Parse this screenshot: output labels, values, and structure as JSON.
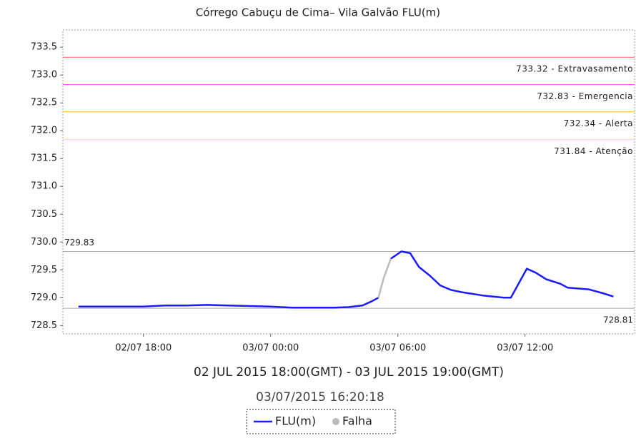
{
  "chart_data": {
    "type": "line",
    "title": "Córrego Cabuçu de Cima– Vila Galvão FLU(m)",
    "x_label": "02 JUL 2015 18:00(GMT) - 03 JUL 2015 19:00(GMT)",
    "subtitle": "03/07/2015 16:20:18",
    "x": [
      "2015-07-02T14:56",
      "2015-07-02T16:00",
      "2015-07-02T18:00",
      "2015-07-02T19:00",
      "2015-07-02T20:00",
      "2015-07-02T21:00",
      "2015-07-02T22:00",
      "2015-07-02T23:00",
      "2015-07-03T00:00",
      "2015-07-03T01:00",
      "2015-07-03T02:00",
      "2015-07-03T03:00",
      "2015-07-03T03:40",
      "2015-07-03T04:20",
      "2015-07-03T04:45",
      "2015-07-03T05:05",
      "2015-07-03T05:20",
      "2015-07-03T05:40",
      "2015-07-03T06:10",
      "2015-07-03T06:35",
      "2015-07-03T07:00",
      "2015-07-03T07:30",
      "2015-07-03T08:00",
      "2015-07-03T08:30",
      "2015-07-03T09:00",
      "2015-07-03T10:00",
      "2015-07-03T11:00",
      "2015-07-03T11:20",
      "2015-07-03T12:05",
      "2015-07-03T12:30",
      "2015-07-03T13:00",
      "2015-07-03T13:40",
      "2015-07-03T14:00",
      "2015-07-03T15:00",
      "2015-07-03T15:40",
      "2015-07-03T16:10"
    ],
    "series": [
      {
        "name": "FLU(m)",
        "color": "#1a1aff",
        "values": [
          728.84,
          728.84,
          728.84,
          728.86,
          728.86,
          728.87,
          728.86,
          728.85,
          728.84,
          728.82,
          728.82,
          728.82,
          728.83,
          728.86,
          728.93,
          729.0,
          null,
          729.7,
          729.83,
          729.8,
          729.55,
          729.4,
          729.22,
          729.14,
          729.1,
          729.04,
          729.0,
          729.0,
          729.52,
          729.45,
          729.33,
          729.25,
          729.18,
          729.15,
          729.08,
          729.02
        ]
      },
      {
        "name": "Falha",
        "color": "#bbbbbb",
        "values": [
          null,
          null,
          null,
          null,
          null,
          null,
          null,
          null,
          null,
          null,
          null,
          null,
          null,
          null,
          null,
          729.0,
          729.35,
          729.7,
          null,
          null,
          null,
          null,
          null,
          null,
          null,
          null,
          null,
          null,
          null,
          null,
          null,
          null,
          null,
          null,
          null,
          null
        ]
      }
    ],
    "xlim": [
      "2015-07-02T14:12",
      "2015-07-03T17:10"
    ],
    "xticks": [
      {
        "value": "2015-07-02T18:00",
        "label": "02/07 18:00"
      },
      {
        "value": "2015-07-03T00:00",
        "label": "03/07 00:00"
      },
      {
        "value": "2015-07-03T06:00",
        "label": "03/07 06:00"
      },
      {
        "value": "2015-07-03T12:00",
        "label": "03/07 12:00"
      }
    ],
    "ylim": [
      728.35,
      733.81
    ],
    "yticks": [
      728.5,
      {
        "value": 729,
        "label": "729.0"
      },
      729.5,
      {
        "value": 730,
        "label": "730.0"
      },
      730.5,
      {
        "value": 731,
        "label": "731.0"
      },
      731.5,
      {
        "value": 732,
        "label": "732.0"
      },
      732.5,
      {
        "value": 733,
        "label": "733.0"
      },
      733.5
    ],
    "reference_lines": [
      {
        "value": 733.32,
        "label": "733.32 - Extravasamento",
        "color": "#ff6666"
      },
      {
        "value": 732.83,
        "label": "732.83 - Emergencia",
        "color": "#ff66ff"
      },
      {
        "value": 732.34,
        "label": "732.34 - Alerta",
        "color": "#ffb347"
      },
      {
        "value": 731.84,
        "label": "731.84 - Atenção",
        "color": "#ffdd55"
      }
    ],
    "max_line": 729.83,
    "min_line": 728.81
  }
}
